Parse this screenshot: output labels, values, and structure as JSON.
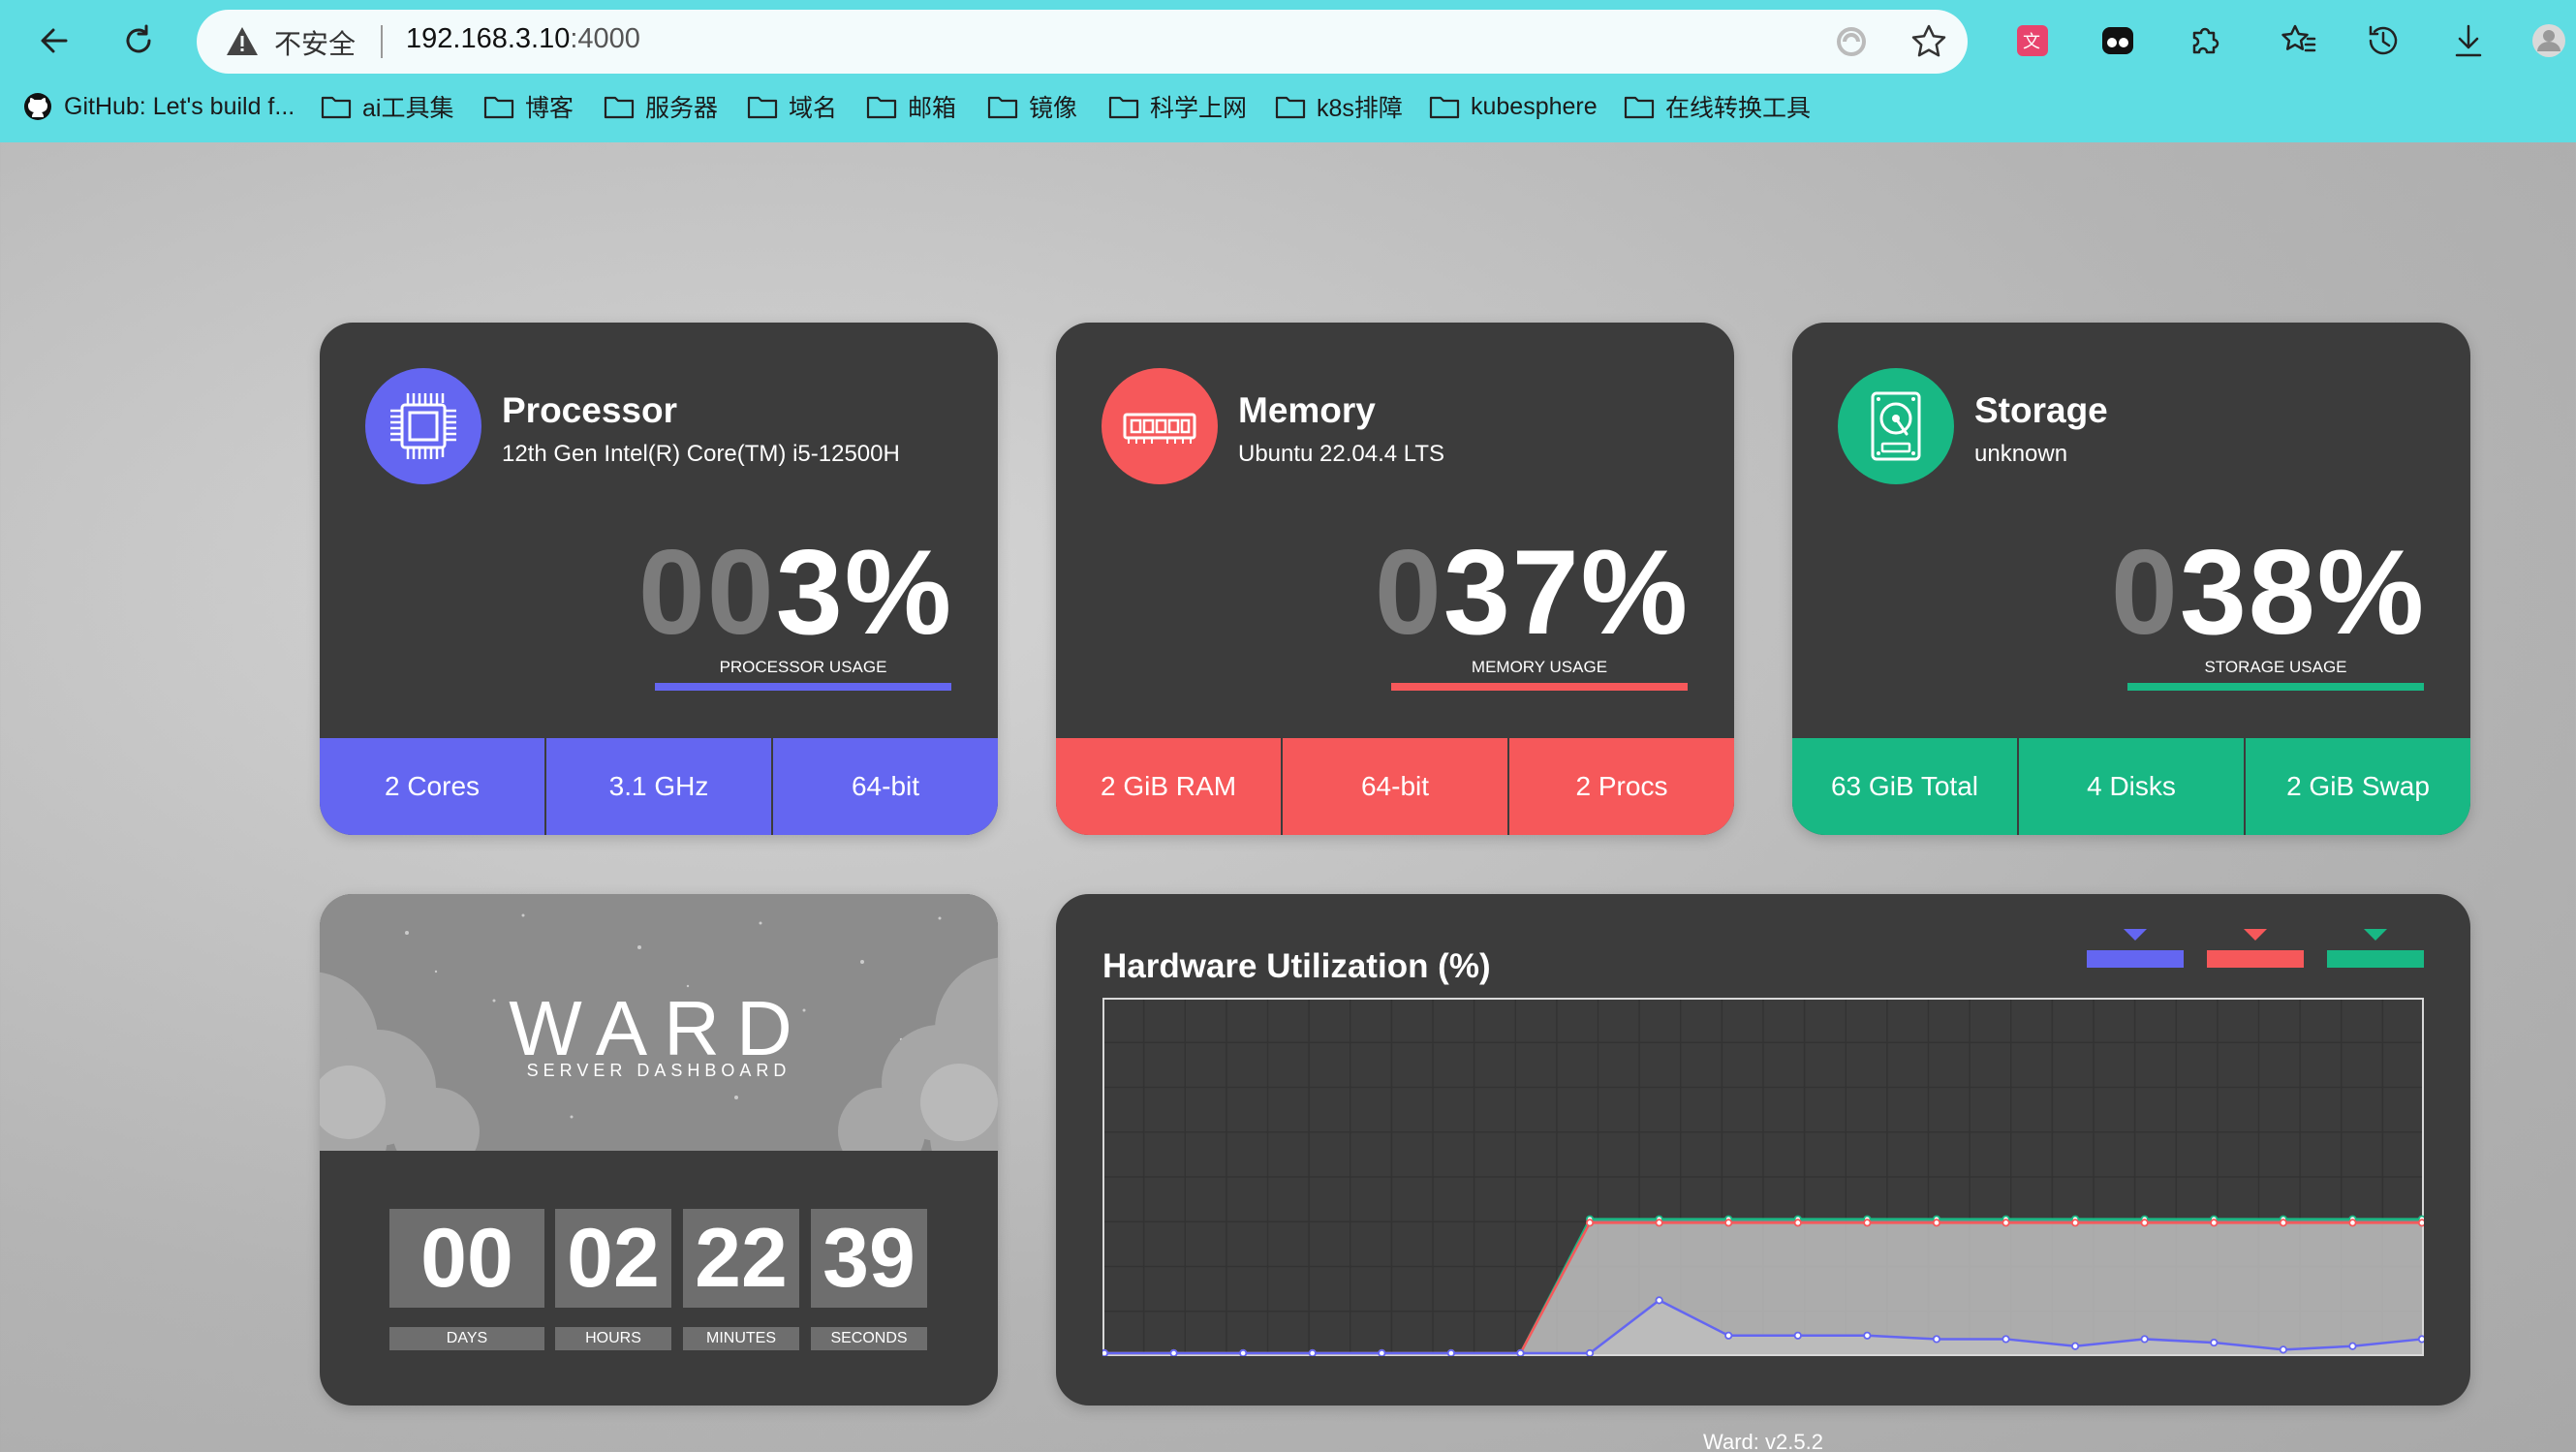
{
  "browser": {
    "security_label": "不安全",
    "url_host": "192.168.3.10",
    "url_port": ":4000",
    "bookmarks": [
      {
        "label": "GitHub: Let's build f...",
        "icon": "github-icon"
      },
      {
        "label": "ai工具集",
        "icon": "folder-icon"
      },
      {
        "label": "博客",
        "icon": "folder-icon"
      },
      {
        "label": "服务器",
        "icon": "folder-icon"
      },
      {
        "label": "域名",
        "icon": "folder-icon"
      },
      {
        "label": "邮箱",
        "icon": "folder-icon"
      },
      {
        "label": "镜像",
        "icon": "folder-icon"
      },
      {
        "label": "科学上网",
        "icon": "folder-icon"
      },
      {
        "label": "k8s排障",
        "icon": "folder-icon"
      },
      {
        "label": "kubesphere",
        "icon": "folder-icon"
      },
      {
        "label": "在线转换工具",
        "icon": "folder-icon"
      }
    ]
  },
  "processor": {
    "title": "Processor",
    "subtitle": "12th Gen Intel(R) Core(TM) i5-12500H",
    "value_lead": "00",
    "value_main": "3%",
    "usage_label": "PROCESSOR USAGE",
    "color": "#6466f1",
    "icon": "cpu-icon",
    "footer": [
      "2 Cores",
      "3.1 GHz",
      "64-bit"
    ]
  },
  "memory": {
    "title": "Memory",
    "subtitle": "Ubuntu 22.04.4 LTS",
    "value_lead": "0",
    "value_main": "37%",
    "usage_label": "MEMORY USAGE",
    "color": "#f6585a",
    "icon": "ram-icon",
    "footer": [
      "2 GiB RAM",
      "64-bit",
      "2 Procs"
    ]
  },
  "storage": {
    "title": "Storage",
    "subtitle": "unknown",
    "value_lead": "0",
    "value_main": "38%",
    "usage_label": "STORAGE USAGE",
    "color": "#18b884",
    "icon": "hard-drive-icon",
    "footer": [
      "63 GiB Total",
      "4 Disks",
      "2 GiB Swap"
    ]
  },
  "uptime": {
    "brand": "WARD",
    "tagline": "SERVER DASHBOARD",
    "units": [
      {
        "value": "00",
        "label": "DAYS"
      },
      {
        "value": "02",
        "label": "HOURS"
      },
      {
        "value": "22",
        "label": "MINUTES"
      },
      {
        "value": "39",
        "label": "SECONDS"
      }
    ]
  },
  "chart_data": {
    "type": "area",
    "title": "Hardware Utilization (%)",
    "ylim": [
      0,
      100
    ],
    "grid": true,
    "legend_position": "top-right",
    "x": [
      1,
      2,
      3,
      4,
      5,
      6,
      7,
      8,
      9,
      10,
      11,
      12,
      13,
      14,
      15,
      16,
      17,
      18,
      19,
      20
    ],
    "series": [
      {
        "color": "#6466f1",
        "values": [
          0,
          0,
          0,
          0,
          0,
          0,
          0,
          0,
          15,
          5,
          5,
          5,
          4,
          4,
          2,
          4,
          3,
          1,
          2,
          4
        ]
      },
      {
        "color": "#f6585a",
        "values": [
          0,
          0,
          0,
          0,
          0,
          0,
          0,
          37,
          37,
          37,
          37,
          37,
          37,
          37,
          37,
          37,
          37,
          37,
          37,
          37
        ]
      },
      {
        "color": "#18b884",
        "values": [
          0,
          0,
          0,
          0,
          0,
          0,
          0,
          38,
          38,
          38,
          38,
          38,
          38,
          38,
          38,
          38,
          38,
          38,
          38,
          38
        ]
      }
    ]
  },
  "footer": {
    "version": "Ward: v2.5.2"
  }
}
